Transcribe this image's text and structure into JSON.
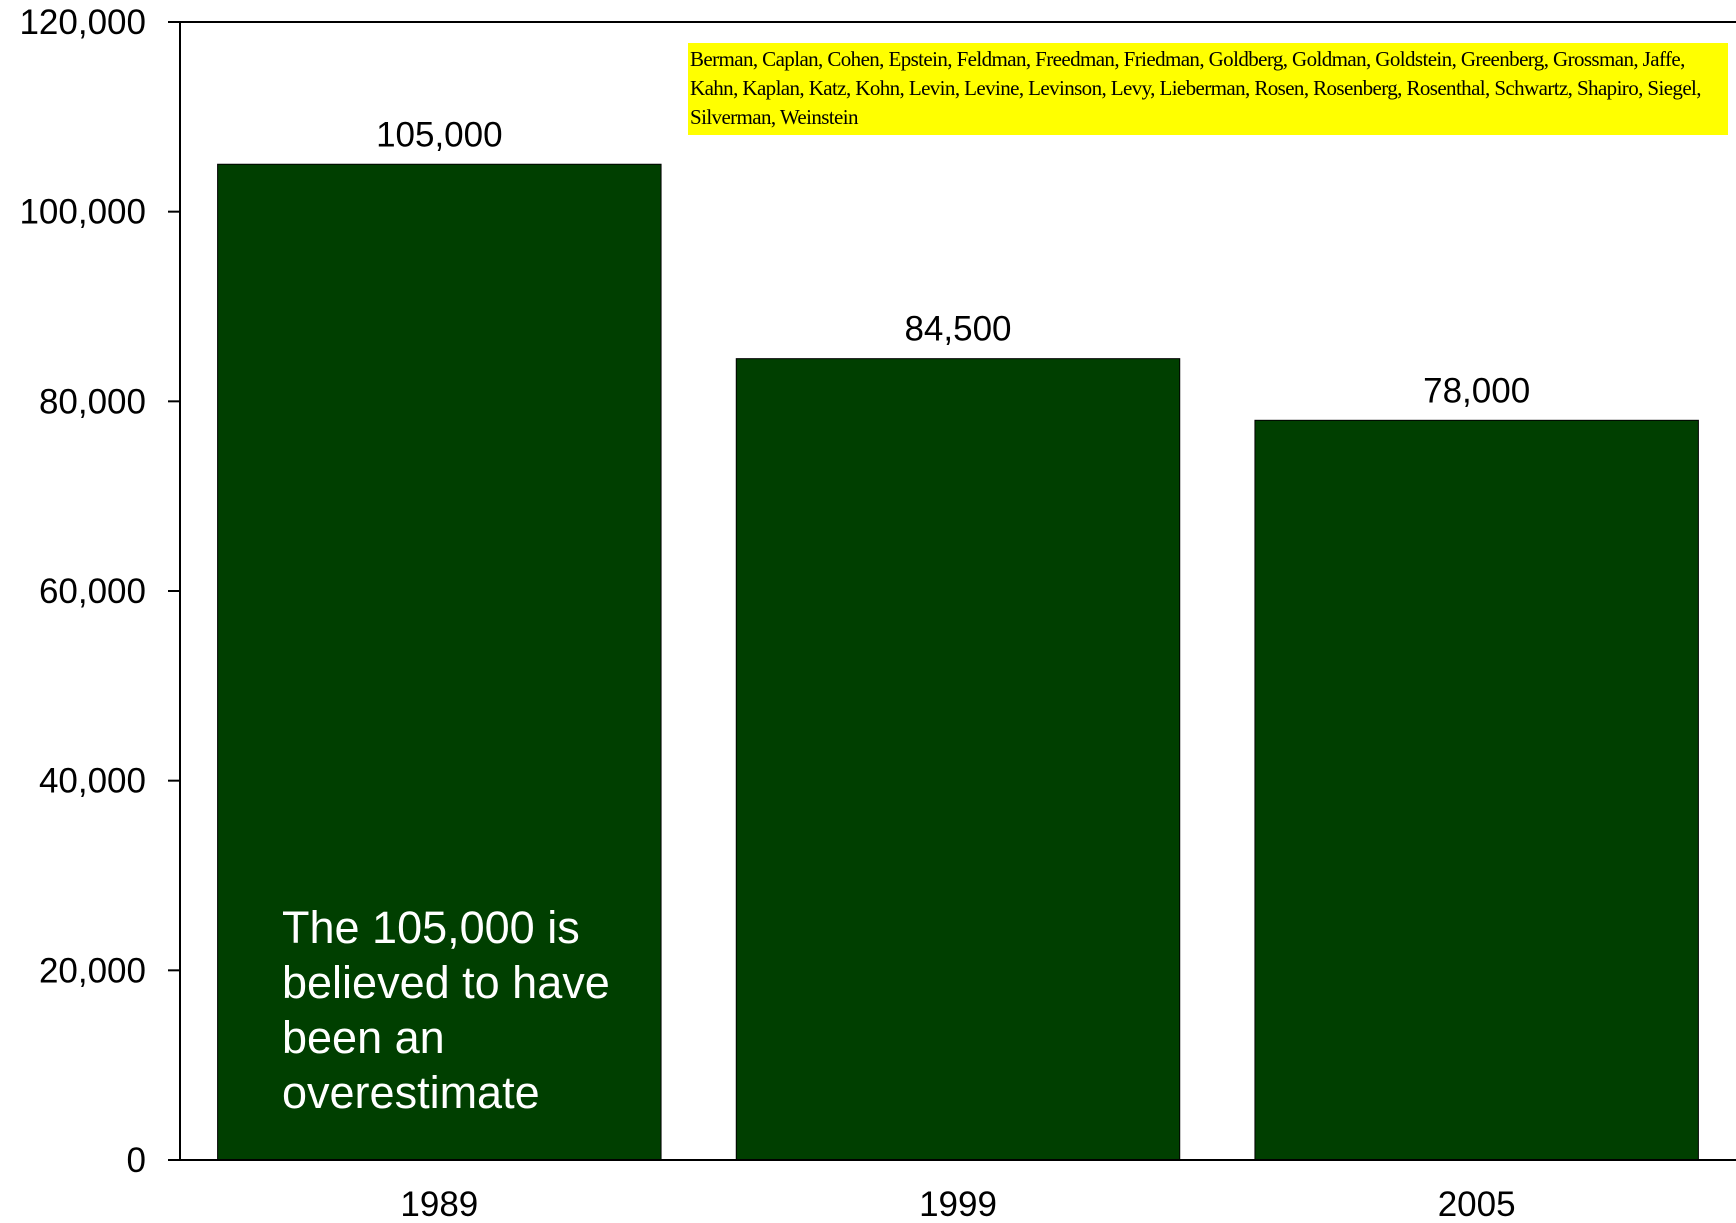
{
  "chart_data": {
    "type": "bar",
    "title": "",
    "xlabel": "",
    "ylabel": "",
    "categories": [
      "1989",
      "1999",
      "2005"
    ],
    "values": [
      105000,
      84500,
      78000
    ],
    "data_labels": [
      "105,000",
      "84,500",
      "78,000"
    ],
    "ylim": [
      0,
      120000
    ],
    "yticks": [
      0,
      20000,
      40000,
      60000,
      80000,
      100000,
      120000
    ],
    "ytick_labels": [
      "0",
      "20,000",
      "40,000",
      "60,000",
      "80,000",
      "100,000",
      "120,000"
    ],
    "grid": false,
    "legend": "none",
    "bar_color": "#003f00",
    "annotations": {
      "overlay_note": "The 105,000 is believed to have been an overestimate",
      "names_box": "Berman, Caplan, Cohen, Epstein, Feldman, Freedman, Friedman, Goldberg, Goldman, Goldstein, Greenberg, Grossman, Jaffe, Kahn, Kaplan, Katz, Kohn, Levin, Levine, Levinson, Levy, Lieberman, Rosen, Rosenberg, Rosenthal, Schwartz, Shapiro, Siegel, Silverman, Weinstein",
      "names_box_color": "#ffff00"
    }
  }
}
